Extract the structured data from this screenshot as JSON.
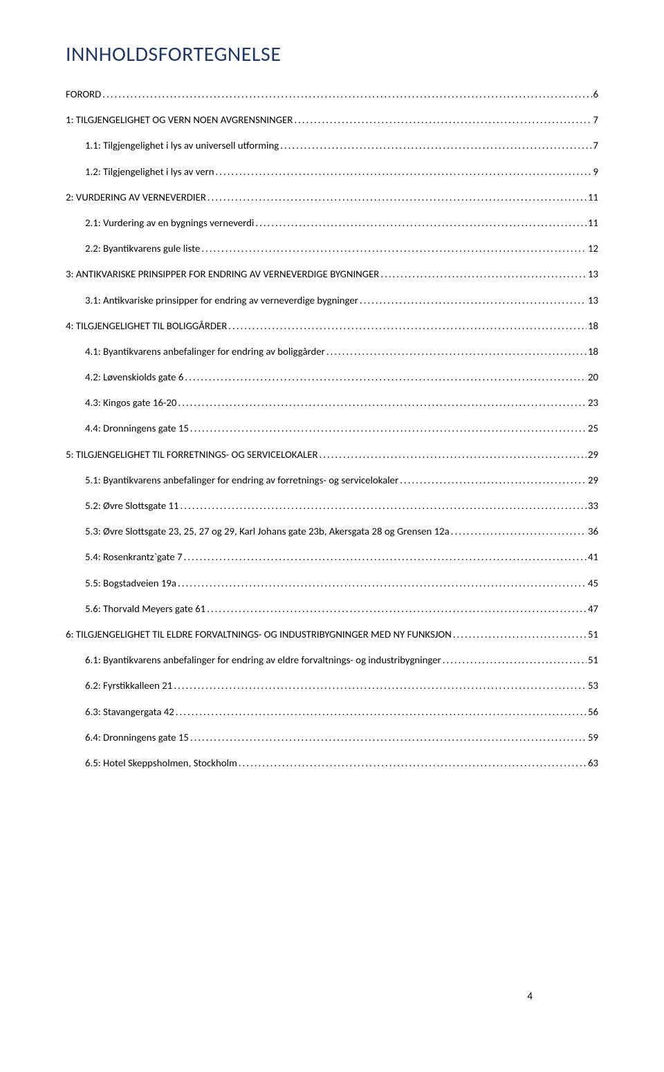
{
  "page": {
    "title": "INNHOLDSFORTEGNELSE",
    "page_number": "4",
    "title_color": "#1f3864"
  },
  "toc": [
    {
      "label": "FORORD",
      "page": "6",
      "level": 0
    },
    {
      "label": "1: TILGJENGELIGHET OG VERN NOEN AVGRENSNINGER",
      "page": "7",
      "level": 0
    },
    {
      "label": "1.1: Tilgjengelighet i lys av universell utforming",
      "page": "7",
      "level": 1
    },
    {
      "label": "1.2: Tilgjengelighet i lys av vern",
      "page": "9",
      "level": 1
    },
    {
      "label": "2: VURDERING AV VERNEVERDIER",
      "page": "11",
      "level": 0
    },
    {
      "label": "2.1: Vurdering av en bygnings verneverdi",
      "page": "11",
      "level": 1
    },
    {
      "label": "2.2: Byantikvarens gule liste",
      "page": "12",
      "level": 1
    },
    {
      "label": "3: ANTIKVARISKE PRINSIPPER FOR ENDRING AV VERNEVERDIGE BYGNINGER",
      "page": "13",
      "level": 0
    },
    {
      "label": "3.1: Antikvariske prinsipper for endring av verneverdige bygninger",
      "page": "13",
      "level": 1
    },
    {
      "label": "4: TILGJENGELIGHET TIL BOLIGGÅRDER",
      "page": "18",
      "level": 0
    },
    {
      "label": "4.1: Byantikvarens anbefalinger for endring av boliggårder",
      "page": "18",
      "level": 1
    },
    {
      "label": "4.2: Løvenskiolds gate 6",
      "page": "20",
      "level": 1
    },
    {
      "label": "4.3: Kingos gate 16-20",
      "page": "23",
      "level": 1
    },
    {
      "label": "4.4: Dronningens gate 15",
      "page": "25",
      "level": 1
    },
    {
      "label": "5: TILGJENGELIGHET TIL FORRETNINGS- OG SERVICELOKALER",
      "page": "29",
      "level": 0
    },
    {
      "label": "5.1: Byantikvarens anbefalinger for endring av forretnings- og servicelokaler",
      "page": "29",
      "level": 1
    },
    {
      "label": "5.2: Øvre Slottsgate 11",
      "page": "33",
      "level": 1
    },
    {
      "label": "5.3: Øvre Slottsgate 23, 25, 27 og 29, Karl Johans gate 23b, Akersgata 28 og Grensen 12a",
      "page": "36",
      "level": 1
    },
    {
      "label": "5.4: Rosenkrantz`gate 7",
      "page": "41",
      "level": 1
    },
    {
      "label": "5.5: Bogstadveien 19a",
      "page": "45",
      "level": 1
    },
    {
      "label": "5.6: Thorvald Meyers gate 61",
      "page": "47",
      "level": 1
    },
    {
      "label": "6: TILGJENGELIGHET TIL ELDRE FORVALTNINGS- OG INDUSTRIBYGNINGER MED NY FUNKSJON",
      "page": "51",
      "level": 0
    },
    {
      "label": "6.1: Byantikvarens anbefalinger for endring av eldre forvaltnings- og industribygninger",
      "page": "51",
      "level": 1
    },
    {
      "label": "6.2: Fyrstikkalleen 21",
      "page": "53",
      "level": 1
    },
    {
      "label": "6.3: Stavangergata 42",
      "page": "56",
      "level": 1
    },
    {
      "label": "6.4: Dronningens gate 15",
      "page": "59",
      "level": 1
    },
    {
      "label": "6.5: Hotel Skeppsholmen, Stockholm",
      "page": "63",
      "level": 1
    }
  ]
}
